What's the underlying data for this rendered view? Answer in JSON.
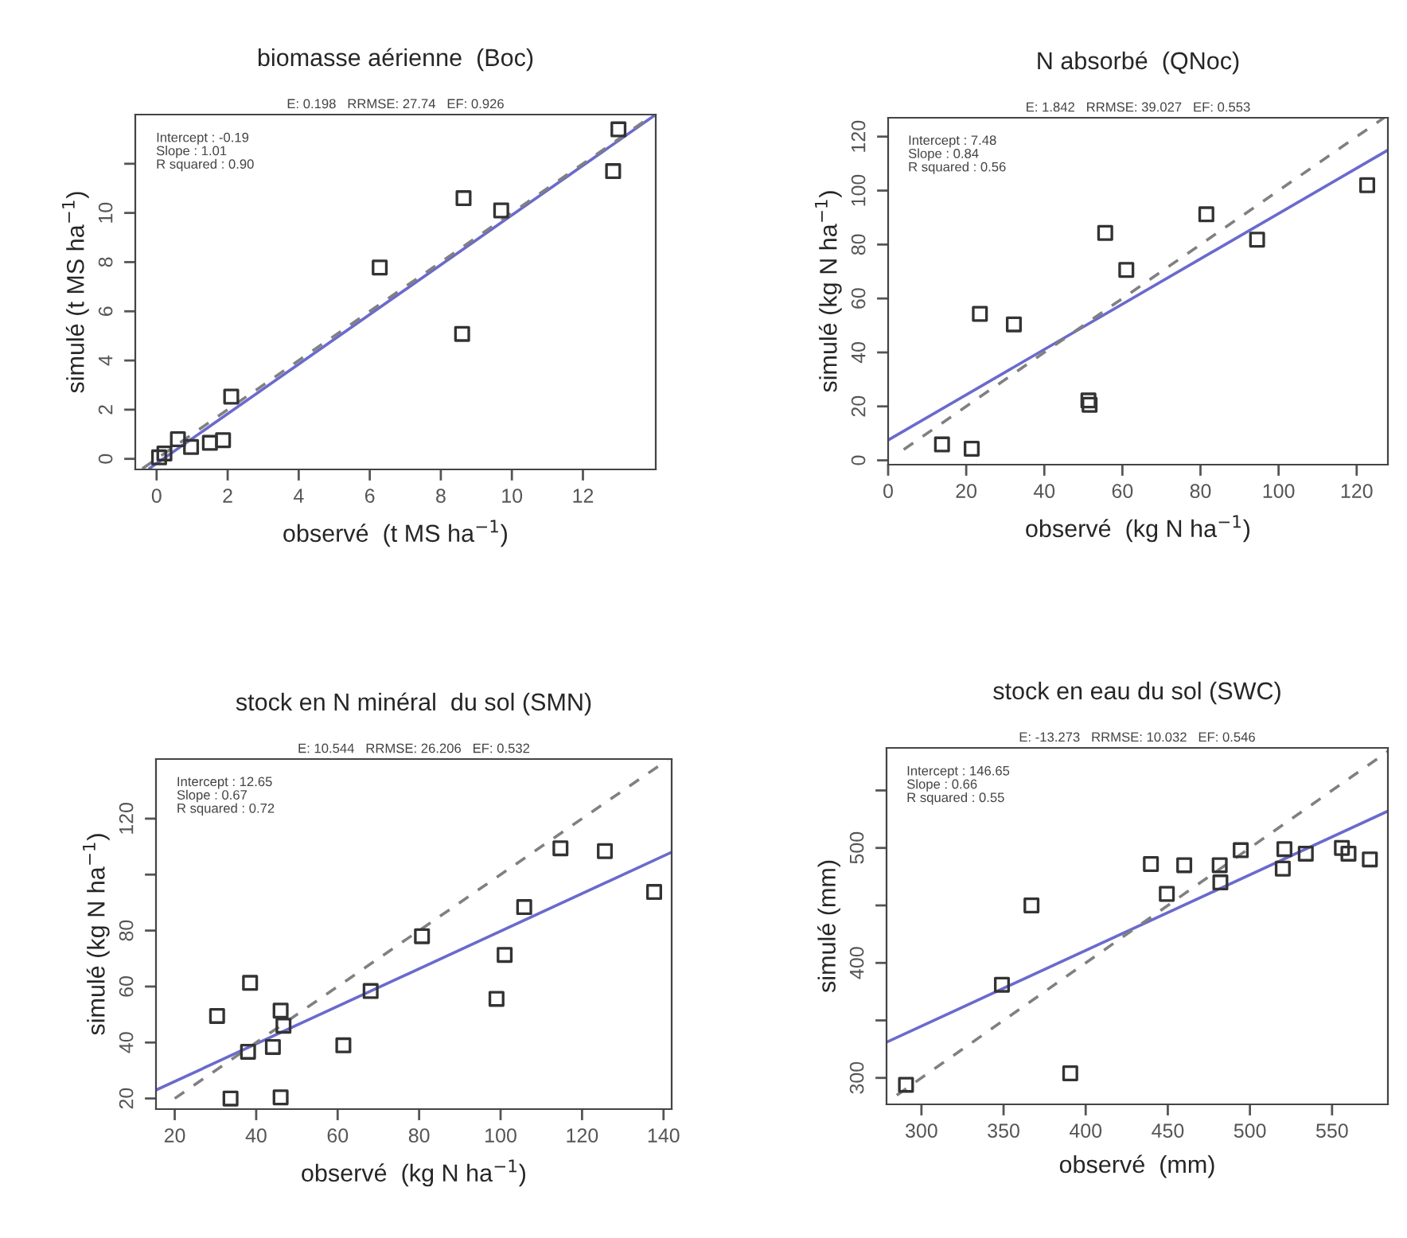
{
  "chart_data": [
    {
      "type": "scatter",
      "title": "biomasse aérienne  (Boc)",
      "subtitle": "E: 0.198   RRMSE: 27.74   EF: 0.926",
      "xlabel": "observé  (t MS ha$^{−1}$)",
      "ylabel": "simulé (t MS ha$^{−1}$)",
      "annotations": [
        "Intercept : -0.19\nSlope : 1.01\nR squared : 0.90"
      ],
      "xlim": [
        -0.6,
        14.05
      ],
      "ylim": [
        -0.43,
        14.0
      ],
      "xticks": [
        0,
        2,
        4,
        6,
        8,
        10,
        12
      ],
      "yticks": [
        0,
        2,
        4,
        6,
        8,
        10,
        {
          "value": 12,
          "label": null
        }
      ],
      "grid": false,
      "legend": false,
      "series": [
        {
          "type": "scatter",
          "marker": "square",
          "color": "#333333",
          "x": [
            13.0,
            12.85,
            8.64,
            9.7,
            6.28,
            8.6,
            2.1,
            1.87,
            1.5,
            0.97,
            0.6,
            0.22,
            0.07
          ],
          "values": [
            13.4,
            11.7,
            10.6,
            10.1,
            7.78,
            5.08,
            2.53,
            0.76,
            0.65,
            0.48,
            0.8,
            0.22,
            0.06
          ]
        },
        {
          "type": "line",
          "line_style": "solid",
          "color": "#6a6acd",
          "x": [
            -0.2,
            14
          ],
          "values": [
            -0.39,
            13.95
          ]
        },
        {
          "type": "line",
          "line_style": "dashed",
          "color": "#808080",
          "x": [
            -0.4,
            14
          ],
          "values": [
            -0.4,
            14
          ]
        }
      ]
    },
    {
      "type": "scatter",
      "title": "N absorbé  (QNoc)",
      "subtitle": "E: 1.842   RRMSE: 39.027   EF: 0.553",
      "xlabel": "observé  (kg N ha$^{−1}$)",
      "ylabel": "simulé (kg N ha$^{−1}$)",
      "annotations": [
        "Intercept : 7.48\nSlope : 0.84\nR squared : 0.56"
      ],
      "xlim": [
        0,
        128
      ],
      "ylim": [
        -1.6,
        127
      ],
      "xticks": [
        0,
        20,
        40,
        60,
        80,
        100,
        120
      ],
      "yticks": [
        0,
        20,
        40,
        60,
        80,
        100,
        120
      ],
      "grid": false,
      "legend": false,
      "series": [
        {
          "type": "scatter",
          "marker": "square",
          "color": "#333333",
          "x": [
            13.8,
            21.4,
            23.5,
            32.2,
            51.3,
            51.6,
            55.6,
            61,
            81.5,
            94.5,
            122.7
          ],
          "values": [
            5.9,
            4.3,
            54.3,
            50.4,
            22.2,
            20.6,
            84.3,
            70.6,
            91.2,
            81.8,
            102
          ]
        },
        {
          "type": "line",
          "line_style": "solid",
          "color": "#6a6acd",
          "x": [
            0,
            128
          ],
          "values": [
            7.5,
            115
          ]
        },
        {
          "type": "line",
          "line_style": "dashed",
          "color": "#808080",
          "x": [
            4,
            127
          ],
          "values": [
            4,
            127
          ]
        }
      ]
    },
    {
      "type": "scatter",
      "title": "stock en N minéral  du sol (SMN)",
      "subtitle": "E: 10.544   RRMSE: 26.206   EF: 0.532",
      "xlabel": "observé  (kg N ha$^{−1}$)",
      "ylabel": "simulé (kg N ha$^{−1}$)",
      "annotations": [
        "Intercept : 12.65\nSlope : 0.67\nR squared : 0.72"
      ],
      "xlim": [
        15.4,
        142
      ],
      "ylim": [
        16.2,
        141.3
      ],
      "xticks": [
        20,
        40,
        60,
        80,
        100,
        120,
        140
      ],
      "yticks": [
        20,
        40,
        60,
        80,
        {
          "value": 100,
          "label": null
        },
        120
      ],
      "grid": false,
      "legend": false,
      "series": [
        {
          "type": "scatter",
          "marker": "square",
          "color": "#333333",
          "x": [
            30.4,
            38.5,
            33.7,
            38,
            44.1,
            46,
            46.7,
            46,
            61.4,
            68.1,
            80.7,
            99,
            101,
            105.8,
            114.7,
            125.6,
            137.7
          ],
          "values": [
            49.5,
            61.3,
            20,
            36.7,
            38.4,
            51.4,
            46,
            20.4,
            39,
            58.4,
            78,
            55.6,
            71.3,
            88.4,
            109.4,
            108.4,
            93.8
          ]
        },
        {
          "type": "line",
          "line_style": "solid",
          "color": "#6a6acd",
          "x": [
            15.4,
            142
          ],
          "values": [
            23,
            108
          ]
        },
        {
          "type": "line",
          "line_style": "dashed",
          "color": "#808080",
          "x": [
            20,
            141
          ],
          "values": [
            20,
            141
          ]
        }
      ]
    },
    {
      "type": "scatter",
      "title": "stock en eau du sol (SWC)",
      "subtitle": "E: -13.273   RRMSE: 10.032   EF: 0.546",
      "xlabel": "observé  (mm)",
      "ylabel": "simulé (mm)",
      "annotations": [
        "Intercept : 146.65\nSlope : 0.66\nR squared : 0.55"
      ],
      "xlim": [
        278.75,
        584
      ],
      "ylim": [
        277,
        587
      ],
      "xticks": [
        300,
        350,
        400,
        450,
        500,
        550
      ],
      "yticks": [
        300,
        {
          "value": 350,
          "label": null
        },
        400,
        {
          "value": 450,
          "label": null
        },
        500,
        {
          "value": 550,
          "label": null
        }
      ],
      "grid": false,
      "legend": false,
      "series": [
        {
          "type": "scatter",
          "marker": "square",
          "color": "#333333",
          "x": [
            290.6,
            349,
            367,
            390.6,
            439.7,
            460,
            449.4,
            481.6,
            482,
            494.4,
            520,
            521,
            534,
            556,
            560,
            573
          ],
          "values": [
            294,
            381,
            450,
            304,
            486,
            485,
            460,
            485,
            470,
            498,
            482,
            499,
            495,
            500,
            495,
            490
          ]
        },
        {
          "type": "line",
          "line_style": "solid",
          "color": "#6a6acd",
          "x": [
            278.75,
            584
          ],
          "values": [
            331,
            532
          ]
        },
        {
          "type": "line",
          "line_style": "dashed",
          "color": "#808080",
          "x": [
            285,
            584
          ],
          "values": [
            285,
            584
          ]
        }
      ]
    }
  ]
}
